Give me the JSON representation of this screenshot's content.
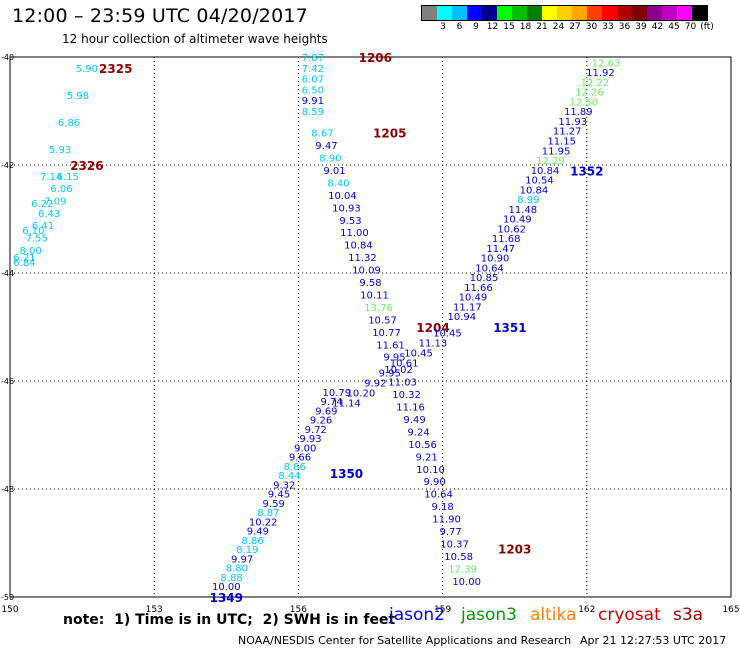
{
  "header": {
    "title": "12:00 – 23:59 UTC 04/20/2017",
    "subtitle": "12 hour collection of altimeter wave heights"
  },
  "colorbar": {
    "colors": [
      "#808080",
      "#00ffff",
      "#00bfff",
      "#0000ff",
      "#00008b",
      "#00ff00",
      "#00c000",
      "#008000",
      "#ffff00",
      "#ffd000",
      "#ffa500",
      "#ff4000",
      "#ff0000",
      "#b00000",
      "#800000",
      "#8b008b",
      "#c000c0",
      "#ff00ff",
      "#000000"
    ],
    "labels": [
      "3",
      "6",
      "9",
      "12",
      "15",
      "18",
      "21",
      "24",
      "27",
      "30",
      "33",
      "36",
      "39",
      "42",
      "45",
      "70"
    ],
    "unit": "(ft)"
  },
  "chart_data": {
    "type": "scatter",
    "title": "12:00 – 23:59 UTC 04/20/2017",
    "subtitle": "12 hour collection of altimeter wave heights",
    "xlim": [
      150,
      165
    ],
    "ylim": [
      -50,
      -40
    ],
    "x_ticks": [
      "150",
      "153",
      "156",
      "159",
      "162",
      "165"
    ],
    "y_ticks": [
      "-40",
      "-42",
      "-44",
      "-46",
      "-48",
      "-50"
    ],
    "unit": "feet",
    "tracks": [
      {
        "id": "2325",
        "satellite": "cryosat",
        "label": "2325",
        "label_pos": [
          152.2,
          -40.2
        ],
        "start": [
          151.6,
          -40.2
        ],
        "end": [
          150.3,
          -43.7
        ],
        "values": [
          "5.90",
          "5.98",
          "6.86",
          "5.93",
          "7.14",
          "6.22",
          "6.10",
          "6.21"
        ]
      },
      {
        "id": "2326",
        "satellite": "cryosat",
        "label": "2326",
        "label_pos": [
          151.6,
          -42.0
        ],
        "start": [
          151.2,
          -42.2
        ],
        "end": [
          150.3,
          -43.8
        ],
        "values": [
          "6.15",
          "6.06",
          "7.09",
          "6.43",
          "6.41",
          "7.55",
          "8.00",
          "6.84"
        ]
      },
      {
        "id": "1206",
        "satellite": "cryosat",
        "label": "1206",
        "label_pos": [
          157.6,
          -40.0
        ],
        "start": [
          156.3,
          -40.0
        ],
        "end": [
          156.3,
          -41.0
        ],
        "values": [
          "7.87",
          "7.42",
          "6.07",
          "6.50",
          "9.91",
          "8.59"
        ]
      },
      {
        "id": "1205",
        "satellite": "cryosat",
        "label": "1205",
        "label_pos": [
          157.9,
          -41.4
        ],
        "start": [
          156.5,
          -41.4
        ],
        "end": [
          159.5,
          -49.7
        ],
        "values": [
          "8.67",
          "9.47",
          "8.90",
          "9.01",
          "8.40",
          "10.04",
          "10.93",
          "9.53",
          "11.00",
          "10.84",
          "11.32",
          "10.09",
          "9.58",
          "10.11",
          "13.76",
          "10.57",
          "10.77",
          "11.61",
          "9.95",
          "10.02",
          "11.03",
          "10.32",
          "11.16",
          "9.49",
          "9.24",
          "10.56",
          "9.21",
          "10.10",
          "9.90",
          "10.64",
          "9.18",
          "11.90",
          "9.77",
          "10.37",
          "10.58",
          "12.39",
          "10.00"
        ]
      },
      {
        "id": "1204",
        "satellite": "cryosat",
        "label": "1204",
        "label_pos": [
          158.8,
          -45.0
        ],
        "start": [
          158.9,
          -45.0
        ],
        "end": [
          158.9,
          -45.0
        ],
        "values": []
      },
      {
        "id": "1203",
        "satellite": "cryosat",
        "label": "1203",
        "label_pos": [
          160.5,
          -49.1
        ],
        "start": [
          160.5,
          -49.1
        ],
        "end": [
          160.5,
          -49.1
        ],
        "values": []
      },
      {
        "id": "1352",
        "satellite": "jason2",
        "label": "1352",
        "label_pos": [
          162.0,
          -42.1
        ],
        "start": [
          162.4,
          -40.1
        ],
        "end": [
          159.4,
          -44.8
        ],
        "values": [
          "12.63",
          "11.92",
          "12.22",
          "12.26",
          "12.50",
          "11.89",
          "11.93",
          "11.27",
          "11.15",
          "11.95",
          "12.29",
          "10.84",
          "10.54",
          "10.84",
          "8.99",
          "11.48",
          "10.49",
          "10.62",
          "11.68",
          "11.47",
          "10.90",
          "10.64",
          "10.85",
          "11.66",
          "10.49",
          "11.17",
          "10.94"
        ]
      },
      {
        "id": "1351",
        "satellite": "jason2",
        "label": "1351",
        "label_pos": [
          160.4,
          -45.0
        ],
        "start": [
          159.1,
          -45.1
        ],
        "end": [
          157.0,
          -46.4
        ],
        "values": [
          "10.45",
          "11.13",
          "10.45",
          "10.61",
          "9.95",
          "9.92",
          "10.20",
          "11.14"
        ]
      },
      {
        "id": "1350",
        "satellite": "jason2",
        "label": "1350",
        "label_pos": [
          157.0,
          -47.7
        ],
        "start": [
          156.8,
          -46.2
        ],
        "end": [
          154.5,
          -49.8
        ],
        "values": [
          "10.79",
          "9.74",
          "9.69",
          "9.26",
          "9.72",
          "9.93",
          "9.00",
          "9.66",
          "8.86",
          "8.44",
          "9.32",
          "9.45",
          "9.59",
          "8.87",
          "10.22",
          "9.49",
          "8.86",
          "8.19",
          "9.97",
          "8.80",
          "8.88",
          "10.00"
        ]
      },
      {
        "id": "1349",
        "satellite": "jason2",
        "label": "1349",
        "label_pos": [
          154.5,
          -50.0
        ],
        "start": [
          154.5,
          -50.0
        ],
        "end": [
          154.5,
          -50.0
        ],
        "values": []
      }
    ]
  },
  "legend": {
    "note": "note:  1) Time is in UTC;  2) SWH is in feet",
    "items": [
      {
        "name": "jason2",
        "color": "#0000ff"
      },
      {
        "name": "jason3",
        "color": "#009900"
      },
      {
        "name": "altika",
        "color": "#ff8000"
      },
      {
        "name": "cryosat",
        "color": "#cc0000"
      },
      {
        "name": "s3a",
        "color": "#990000"
      }
    ]
  },
  "footer": {
    "credit": "NOAA/NESDIS Center for Satellite Applications and Research",
    "timestamp": "Apr 21 12:27:53 UTC 2017"
  }
}
